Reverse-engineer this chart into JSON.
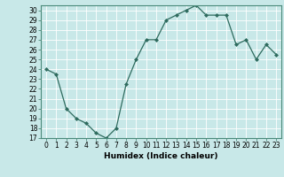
{
  "x": [
    0,
    1,
    2,
    3,
    4,
    5,
    6,
    7,
    8,
    9,
    10,
    11,
    12,
    13,
    14,
    15,
    16,
    17,
    18,
    19,
    20,
    21,
    22,
    23
  ],
  "y": [
    24,
    23.5,
    20,
    19,
    18.5,
    17.5,
    17,
    18,
    22.5,
    25,
    27,
    27,
    29,
    29.5,
    30,
    30.5,
    29.5,
    29.5,
    29.5,
    26.5,
    27,
    25,
    26.5,
    25.5
  ],
  "xlabel": "Humidex (Indice chaleur)",
  "ylim": [
    17,
    30.5
  ],
  "xlim": [
    -0.5,
    23.5
  ],
  "yticks": [
    17,
    18,
    19,
    20,
    21,
    22,
    23,
    24,
    25,
    26,
    27,
    28,
    29,
    30
  ],
  "xticks": [
    0,
    1,
    2,
    3,
    4,
    5,
    6,
    7,
    8,
    9,
    10,
    11,
    12,
    13,
    14,
    15,
    16,
    17,
    18,
    19,
    20,
    21,
    22,
    23
  ],
  "line_color": "#2e6b5e",
  "marker_color": "#2e6b5e",
  "bg_color": "#c8e8e8",
  "grid_color": "#b0d8d8",
  "tick_fontsize": 5.5,
  "label_fontsize": 6.5
}
